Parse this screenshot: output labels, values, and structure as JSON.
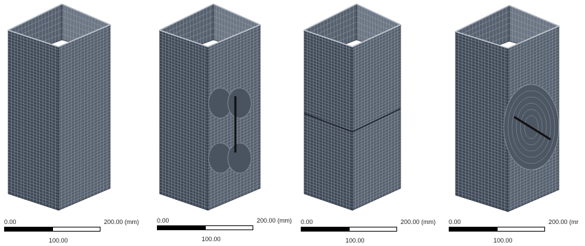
{
  "colors": {
    "mesh_face_dark": "#3f4856",
    "mesh_face_mid": "#56606e",
    "mesh_face_light": "#6d7684",
    "mesh_line": "#9aa3ae",
    "crack": "#111111"
  },
  "panels": [
    {
      "name": "intact-tube",
      "scale": {
        "left_label": "0.00",
        "right_label": "200.00 (mm)",
        "mid_label": "100.00"
      }
    },
    {
      "name": "tube-vertical-slot",
      "scale": {
        "left_label": "0.00",
        "right_label": "200.00 (mm)",
        "mid_label": "100.00"
      }
    },
    {
      "name": "tube-horizontal-cut",
      "scale": {
        "left_label": "0.00",
        "right_label": "200.00 (mm)",
        "mid_label": "100.00"
      }
    },
    {
      "name": "tube-inclined-crack",
      "scale": {
        "left_label": "0.00",
        "right_label": "200.00 (mr",
        "mid_label": "100.00"
      }
    }
  ]
}
